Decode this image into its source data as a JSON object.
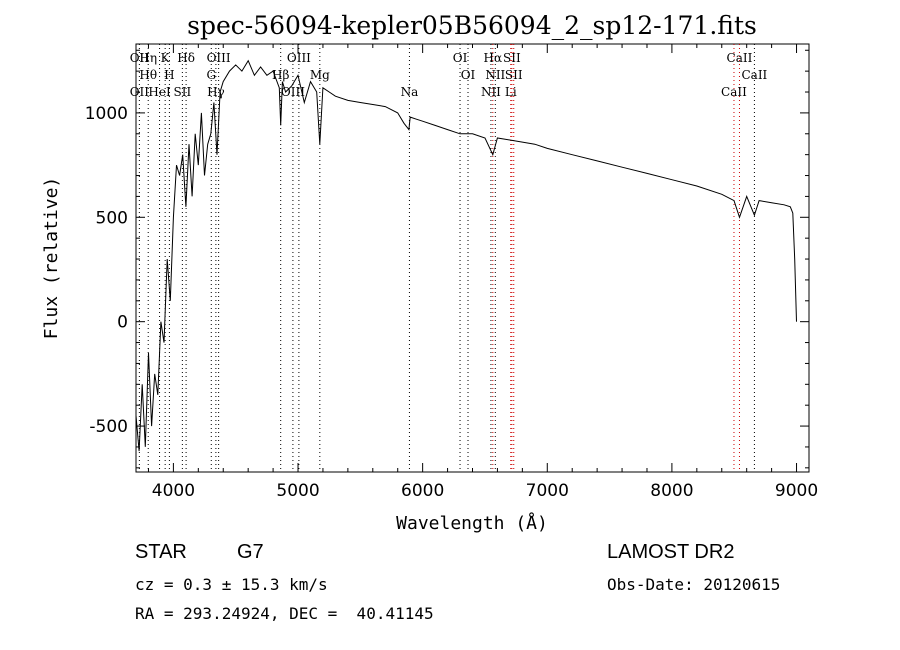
{
  "chart_data": {
    "type": "line",
    "title": "spec-56094-kepler05B56094_2_sp12-171.fits",
    "xlabel": "Wavelength (Å)",
    "ylabel": "Flux (relative)",
    "xlim": [
      3700,
      9100
    ],
    "ylim": [
      -720,
      1330
    ],
    "x_ticks": [
      4000,
      5000,
      6000,
      7000,
      8000,
      9000
    ],
    "y_ticks": [
      -500,
      0,
      500,
      1000
    ],
    "grid": false,
    "series": [
      {
        "x": [
          3700,
          3725,
          3750,
          3775,
          3800,
          3825,
          3850,
          3875,
          3900,
          3925,
          3950,
          3975,
          4000,
          4025,
          4050,
          4075,
          4100,
          4125,
          4150,
          4175,
          4200,
          4225,
          4250,
          4275,
          4300,
          4325,
          4350,
          4375,
          4400,
          4450,
          4500,
          4550,
          4600,
          4650,
          4700,
          4750,
          4800,
          4850,
          4861,
          4875,
          4900,
          4950,
          5000,
          5050,
          5100,
          5150,
          5175,
          5200,
          5250,
          5300,
          5400,
          5500,
          5600,
          5700,
          5800,
          5850,
          5890,
          5900,
          5950,
          6000,
          6100,
          6200,
          6300,
          6400,
          6500,
          6563,
          6600,
          6700,
          6800,
          6900,
          7000,
          7200,
          7400,
          7600,
          7800,
          8000,
          8200,
          8400,
          8498,
          8542,
          8600,
          8662,
          8700,
          8800,
          8900,
          8950,
          8970,
          8985,
          9000
        ],
        "y": [
          -450,
          -620,
          -300,
          -600,
          -150,
          -500,
          -250,
          -350,
          0,
          -100,
          300,
          100,
          500,
          750,
          700,
          800,
          550,
          850,
          600,
          900,
          750,
          1000,
          700,
          850,
          900,
          1050,
          800,
          1100,
          1150,
          1200,
          1230,
          1200,
          1250,
          1180,
          1220,
          1180,
          1200,
          1120,
          940,
          1150,
          1100,
          1130,
          1180,
          1050,
          1150,
          1100,
          850,
          1120,
          1100,
          1080,
          1060,
          1050,
          1040,
          1030,
          1000,
          950,
          920,
          980,
          970,
          960,
          940,
          920,
          900,
          900,
          880,
          800,
          880,
          870,
          860,
          850,
          830,
          800,
          770,
          740,
          710,
          680,
          650,
          610,
          580,
          500,
          600,
          510,
          580,
          570,
          560,
          550,
          520,
          300,
          0
        ]
      }
    ],
    "line_markers": [
      {
        "wavelength": 3727,
        "top": "OII",
        "bottom": "OII",
        "color": "#000000"
      },
      {
        "wavelength": 3798,
        "top": "Hθ",
        "bottom": "Hη",
        "color": "#000000"
      },
      {
        "wavelength": 3889,
        "top": "HeI",
        "bottom": "",
        "color": "#000000"
      },
      {
        "wavelength": 3934,
        "top": "K",
        "bottom": "",
        "color": "#000000"
      },
      {
        "wavelength": 3968,
        "top": "H",
        "bottom": "",
        "color": "#000000"
      },
      {
        "wavelength": 4072,
        "top": "SII",
        "bottom": "",
        "color": "#000000"
      },
      {
        "wavelength": 4102,
        "top": "Hδ",
        "bottom": "",
        "color": "#000000"
      },
      {
        "wavelength": 4304,
        "top": "G",
        "bottom": "",
        "color": "#000000"
      },
      {
        "wavelength": 4341,
        "top": "Hγ",
        "bottom": "",
        "color": "#000000"
      },
      {
        "wavelength": 4363,
        "top": "OIII",
        "bottom": "",
        "color": "#000000"
      },
      {
        "wavelength": 4861,
        "top": "Hβ",
        "bottom": "",
        "color": "#000000"
      },
      {
        "wavelength": 4959,
        "top": "OIII",
        "bottom": "",
        "color": "#000000"
      },
      {
        "wavelength": 5007,
        "top": "OIII",
        "bottom": "",
        "color": "#000000"
      },
      {
        "wavelength": 5175,
        "top": "Mg",
        "bottom": "",
        "color": "#000000"
      },
      {
        "wavelength": 5894,
        "top": "Na",
        "bottom": "",
        "color": "#000000"
      },
      {
        "wavelength": 6300,
        "top": "OI",
        "bottom": "",
        "color": "#000000"
      },
      {
        "wavelength": 6364,
        "top": "OI",
        "bottom": "",
        "color": "#000000"
      },
      {
        "wavelength": 6548,
        "top": "NII",
        "bottom": "",
        "color": "#000000"
      },
      {
        "wavelength": 6563,
        "top": "Hα",
        "bottom": "",
        "color": "#cc0000"
      },
      {
        "wavelength": 6583,
        "top": "NII",
        "bottom": "",
        "color": "#000000"
      },
      {
        "wavelength": 6707,
        "top": "Li",
        "bottom": "",
        "color": "#cc0000"
      },
      {
        "wavelength": 6716,
        "top": "SII",
        "bottom": "",
        "color": "#cc0000"
      },
      {
        "wavelength": 6731,
        "top": "SII",
        "bottom": "",
        "color": "#cc0000"
      },
      {
        "wavelength": 8498,
        "top": "CaII",
        "bottom": "",
        "color": "#cc0000"
      },
      {
        "wavelength": 8542,
        "top": "CaII",
        "bottom": "",
        "color": "#cc0000"
      },
      {
        "wavelength": 8662,
        "top": "CaII",
        "bottom": "",
        "color": "#000000"
      }
    ]
  },
  "info": {
    "class": "STAR",
    "subclass": "G7",
    "cz": "cz = 0.3 ± 15.3 km/s",
    "coords": "RA = 293.24924, DEC =  40.41145",
    "survey": "LAMOST DR2",
    "obs_date": "Obs-Date: 20120615"
  }
}
